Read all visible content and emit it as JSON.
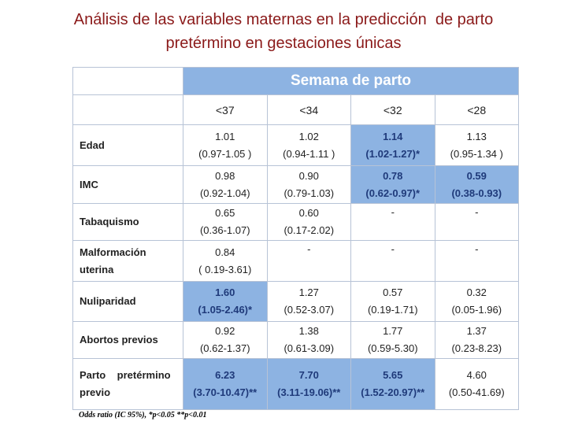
{
  "title": [
    "Análisis de las variables maternas en la predicción  de parto",
    "pretérmino en gestaciones únicas"
  ],
  "table": {
    "group_header": "Semana de parto",
    "columns": [
      "<37",
      "<34",
      "<32",
      "<28"
    ],
    "rows": [
      {
        "label": [
          "Edad"
        ],
        "cells": [
          {
            "value": "1.01",
            "ci": "(0.97-1.05 )"
          },
          {
            "value": "1.02",
            "ci": "(0.94-1.11 )"
          },
          {
            "value": "1.14",
            "ci": "(1.02-1.27)*",
            "highlight": true
          },
          {
            "value": "1.13",
            "ci": "(0.95-1.34 )"
          }
        ]
      },
      {
        "label": [
          "IMC"
        ],
        "cells": [
          {
            "value": "0.98",
            "ci": "(0.92-1.04)"
          },
          {
            "value": "0.90",
            "ci": "(0.79-1.03)"
          },
          {
            "value": "0.78",
            "ci": "(0.62-0.97)*",
            "highlight": true
          },
          {
            "value": "0.59",
            "ci": "(0.38-0.93)",
            "highlight": true
          }
        ]
      },
      {
        "label": [
          "Tabaquismo"
        ],
        "cells": [
          {
            "value": "0.65",
            "ci": "(0.36-1.07)"
          },
          {
            "value": "0.60",
            "ci": "(0.17-2.02)"
          },
          {
            "value": "-"
          },
          {
            "value": "-"
          }
        ]
      },
      {
        "label": [
          "Malformación",
          "uterina"
        ],
        "cells": [
          {
            "value": "0.84",
            "ci": "( 0.19-3.61)"
          },
          {
            "value": "-"
          },
          {
            "value": "-"
          },
          {
            "value": "-"
          }
        ]
      },
      {
        "label": [
          "Nuliparidad"
        ],
        "cells": [
          {
            "value": "1.60",
            "ci": "(1.05-2.46)*",
            "highlight": true
          },
          {
            "value": "1.27",
            "ci": "(0.52-3.07)"
          },
          {
            "value": "0.57",
            "ci": "(0.19-1.71)"
          },
          {
            "value": "0.32",
            "ci": "(0.05-1.96)"
          }
        ]
      },
      {
        "label": [
          "Abortos previos"
        ],
        "cells": [
          {
            "value": "0.92",
            "ci": "(0.62-1.37)"
          },
          {
            "value": "1.38",
            "ci": "(0.61-3.09)"
          },
          {
            "value": "1.77",
            "ci": "(0.59-5.30)"
          },
          {
            "value": "1.37",
            "ci": "(0.23-8.23)"
          }
        ]
      },
      {
        "label": [
          "Parto    pretérmino",
          "previo"
        ],
        "cells": [
          {
            "value": "6.23",
            "ci": "(3.70-10.47)**",
            "highlight": true
          },
          {
            "value": "7.70",
            "ci": "(3.11-19.06)**",
            "highlight": true
          },
          {
            "value": "5.65",
            "ci": "(1.52-20.97)**",
            "highlight": true
          },
          {
            "value": "4.60",
            "ci": "(0.50-41.69)"
          }
        ]
      }
    ]
  },
  "footnote": "Odds ratio (IC 95%), *p<0.05 **p<0.01"
}
